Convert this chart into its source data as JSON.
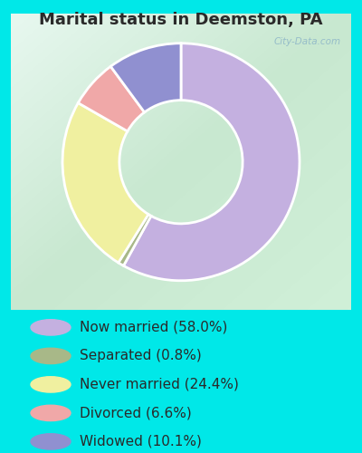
{
  "title": "Marital status in Deemston, PA",
  "slices": [
    {
      "label": "Now married (58.0%)",
      "value": 58.0,
      "color": "#c4b0e0"
    },
    {
      "label": "Separated (0.8%)",
      "value": 0.8,
      "color": "#a8b888"
    },
    {
      "label": "Never married (24.4%)",
      "value": 24.4,
      "color": "#f0f0a0"
    },
    {
      "label": "Divorced (6.6%)",
      "value": 6.6,
      "color": "#f0a8a8"
    },
    {
      "label": "Widowed (10.1%)",
      "value": 10.1,
      "color": "#9090d0"
    }
  ],
  "bg_outer": "#00e8e8",
  "watermark": "City-Data.com",
  "title_fontsize": 13,
  "legend_fontsize": 11,
  "startangle": 90
}
